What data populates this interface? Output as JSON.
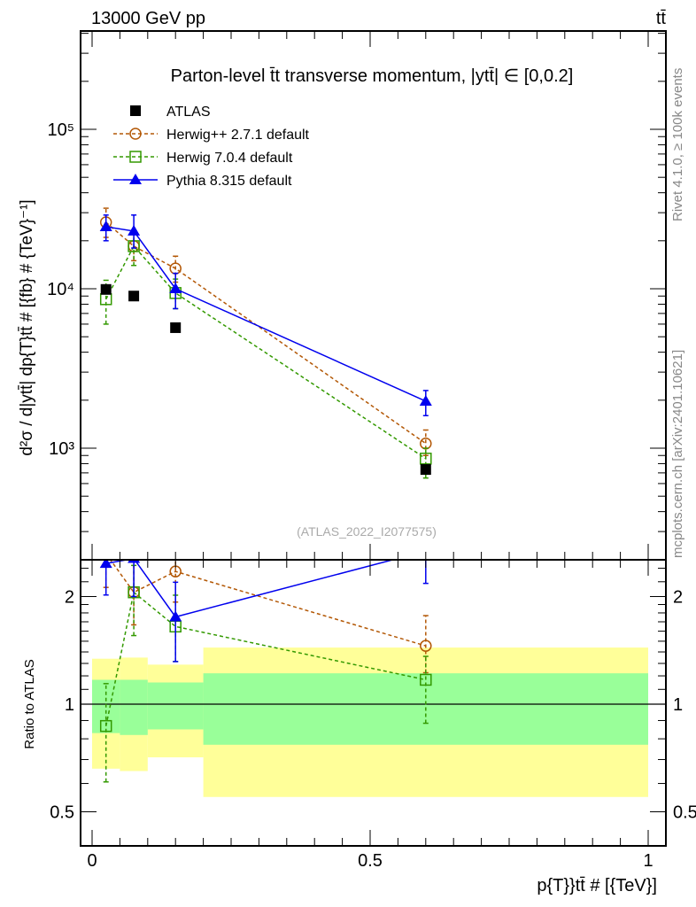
{
  "header": {
    "left": "13000 GeV pp",
    "right": "tt̄"
  },
  "side_labels": {
    "rivet": "Rivet 4.1.0, ≥ 100k events",
    "mcplots": "mcplots.cern.ch [arXiv:2401.10621]"
  },
  "watermark": "(ATLAS_2022_I2077575)",
  "colors": {
    "atlas": "#000000",
    "herwigpp": "#b35806",
    "herwig7": "#339900",
    "pythia": "#0000ee",
    "band_outer": "#ffff99",
    "band_inner": "#99ff99"
  },
  "chart_data": [
    {
      "type": "scatter",
      "title": "Parton-level t̄t transverse momentum, |ytt̄| ∈ [0,0.2]",
      "xlabel": "p{T}}tt̄ # [{TeV}]",
      "ylabel": "d²σ / d|ytt̄| dp{T}tt̄ # [{fb} # {TeV}⁻¹]",
      "yscale": "log",
      "xlim": [
        -0.02,
        1.03
      ],
      "ylim": [
        200,
        414000
      ],
      "ytick_labels": [
        "10³",
        "10⁴",
        "10⁵"
      ],
      "ytick_values": [
        1000,
        10000,
        100000
      ],
      "legend_position": "top-left",
      "x": [
        0.025,
        0.075,
        0.15,
        0.6
      ],
      "series": [
        {
          "name": "ATLAS",
          "key": "atlas",
          "marker": "square-filled",
          "line": "none",
          "values": [
            9900,
            9000,
            5700,
            735
          ],
          "err_lo": [
            9900,
            9000,
            5700,
            735
          ],
          "err_hi": [
            9900,
            9000,
            5700,
            735
          ]
        },
        {
          "name": "Herwig++ 2.7.1 default",
          "key": "herwigpp",
          "marker": "circle-open",
          "line": "dashed",
          "values": [
            26100,
            18500,
            13400,
            1070
          ],
          "err_lo": [
            21000,
            15000,
            11000,
            900
          ],
          "err_hi": [
            32000,
            22500,
            16000,
            1300
          ]
        },
        {
          "name": "Herwig 7.0.4 default",
          "key": "herwig7",
          "marker": "square-open",
          "line": "dashed",
          "values": [
            8600,
            18500,
            9400,
            860
          ],
          "err_lo": [
            6000,
            14000,
            7500,
            650
          ],
          "err_hi": [
            11300,
            22000,
            11500,
            1000
          ]
        },
        {
          "name": "Pythia 8.315 default",
          "key": "pythia",
          "marker": "triangle-filled",
          "line": "solid",
          "values": [
            24500,
            23000,
            10000,
            1970
          ],
          "err_lo": [
            20000,
            18000,
            7500,
            1600
          ],
          "err_hi": [
            29000,
            29000,
            12500,
            2300
          ]
        }
      ]
    },
    {
      "type": "scatter",
      "ylabel": "Ratio to ATLAS",
      "yscale": "log",
      "ylim": [
        0.4,
        2.53
      ],
      "ytick_labels": [
        "0.5",
        "1",
        "2"
      ],
      "ytick_values": [
        0.5,
        1,
        2
      ],
      "xtick_labels": [
        "0",
        "0.5",
        "1"
      ],
      "xtick_values": [
        0,
        0.5,
        1
      ],
      "reference": "ATLAS",
      "bin_edges": [
        0,
        0.05,
        0.1,
        0.2,
        1.0
      ],
      "band_outer": {
        "lo": [
          0.66,
          0.65,
          0.71,
          0.55
        ],
        "hi": [
          1.34,
          1.35,
          1.29,
          1.44
        ]
      },
      "band_inner": {
        "lo": [
          0.83,
          0.82,
          0.85,
          0.77
        ],
        "hi": [
          1.17,
          1.17,
          1.15,
          1.22
        ]
      }
    }
  ]
}
